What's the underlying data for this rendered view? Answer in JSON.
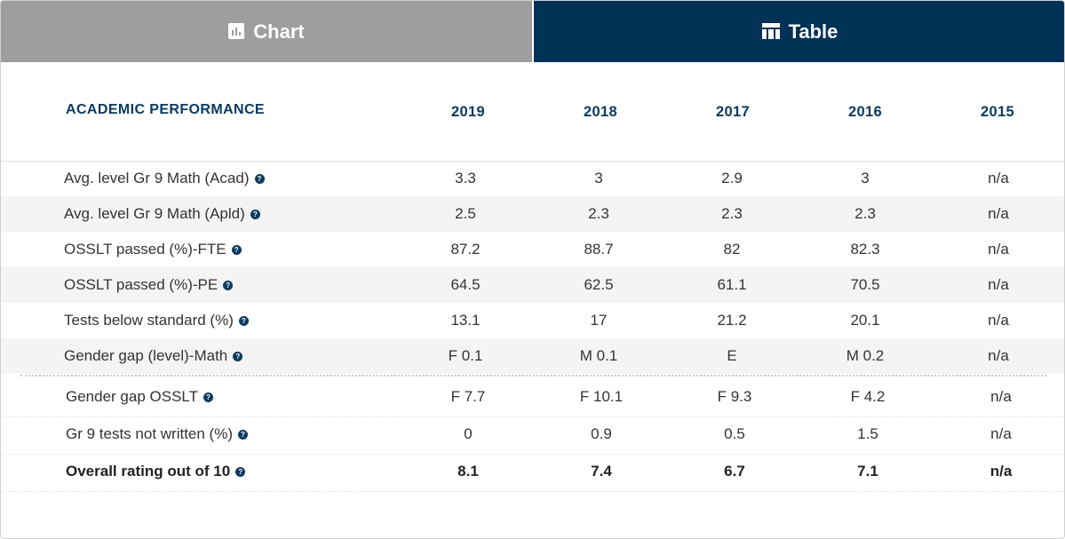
{
  "tabs": {
    "chart_label": "Chart",
    "table_label": "Table"
  },
  "table": {
    "header_label": "ACADEMIC PERFORMANCE",
    "years": [
      "2019",
      "2018",
      "2017",
      "2016",
      "2015"
    ],
    "rows": [
      {
        "label": "Avg. level Gr 9 Math (Acad)",
        "values": [
          "3.3",
          "3",
          "2.9",
          "3",
          "n/a"
        ]
      },
      {
        "label": "Avg. level Gr 9 Math (Apld)",
        "values": [
          "2.5",
          "2.3",
          "2.3",
          "2.3",
          "n/a"
        ]
      },
      {
        "label": "OSSLT passed (%)-FTE",
        "values": [
          "87.2",
          "88.7",
          "82",
          "82.3",
          "n/a"
        ]
      },
      {
        "label": "OSSLT passed (%)-PE",
        "values": [
          "64.5",
          "62.5",
          "61.1",
          "70.5",
          "n/a"
        ]
      },
      {
        "label": "Tests below standard (%)",
        "values": [
          "13.1",
          "17",
          "21.2",
          "20.1",
          "n/a"
        ]
      },
      {
        "label": "Gender gap (level)-Math",
        "values": [
          "F 0.1",
          "M 0.1",
          "E",
          "M 0.2",
          "n/a"
        ]
      },
      {
        "label": "Gender gap OSSLT",
        "values": [
          "F 7.7",
          "F 10.1",
          "F 9.3",
          "F 4.2",
          "n/a"
        ]
      },
      {
        "label": "Gr 9 tests not written (%)",
        "values": [
          "0",
          "0.9",
          "0.5",
          "1.5",
          "n/a"
        ]
      },
      {
        "label": "Overall rating out of 10",
        "values": [
          "8.1",
          "7.4",
          "6.7",
          "7.1",
          "n/a"
        ]
      }
    ]
  },
  "colors": {
    "tab_inactive": "#9e9e9e",
    "tab_active": "#003156",
    "header_text": "#0b3a60",
    "row_shade": "#f4f4f4"
  },
  "icons": {
    "chart_tab_icon": "bar-chart-icon",
    "table_tab_icon": "table-icon",
    "info_icon": "question-circle-icon"
  }
}
